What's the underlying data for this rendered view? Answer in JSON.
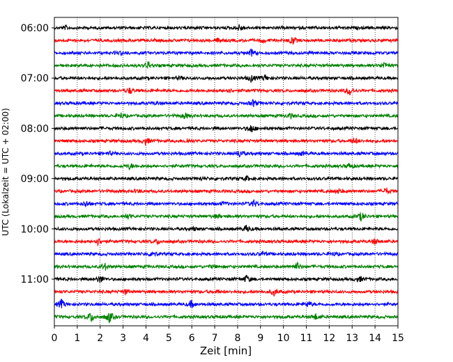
{
  "chart_data": {
    "type": "line",
    "title": "",
    "xlabel": "Zeit  [min]",
    "ylabel": "UTC (Lokalzeit = UTC + 02:00)",
    "xlim": [
      0,
      15
    ],
    "x_ticks": [
      0,
      1,
      2,
      3,
      4,
      5,
      6,
      7,
      8,
      9,
      10,
      11,
      12,
      13,
      14,
      15
    ],
    "x_tick_labels": [
      "0",
      "1",
      "2",
      "3",
      "4",
      "5",
      "6",
      "7",
      "8",
      "9",
      "10",
      "11",
      "12",
      "13",
      "14",
      "15"
    ],
    "y_ticks": [
      "06:00",
      "07:00",
      "08:00",
      "09:00",
      "10:00",
      "11:00"
    ],
    "grid": "vertical dotted at each minute",
    "trace_minutes": 15,
    "color_cycle": [
      "#000000",
      "#ff0000",
      "#0000ff",
      "#008000"
    ],
    "series": [
      {
        "start": "06:00",
        "color": "#000000",
        "events": [
          [
            0.5,
            2
          ],
          [
            8.1,
            5
          ]
        ]
      },
      {
        "start": "06:15",
        "color": "#ff0000",
        "events": [
          [
            7.2,
            3
          ],
          [
            9.1,
            2
          ],
          [
            10.4,
            6
          ]
        ]
      },
      {
        "start": "06:30",
        "color": "#0000ff",
        "events": [
          [
            8.6,
            5
          ],
          [
            2.9,
            2
          ]
        ]
      },
      {
        "start": "06:45",
        "color": "#008000",
        "events": [
          [
            4.1,
            5
          ],
          [
            14.4,
            5
          ]
        ]
      },
      {
        "start": "07:00",
        "color": "#000000",
        "events": [
          [
            8.6,
            5
          ],
          [
            9.2,
            4
          ],
          [
            5.5,
            2
          ]
        ]
      },
      {
        "start": "07:15",
        "color": "#ff0000",
        "events": [
          [
            3.3,
            4
          ],
          [
            7.6,
            3
          ],
          [
            12.9,
            6
          ]
        ]
      },
      {
        "start": "07:30",
        "color": "#0000ff",
        "events": [
          [
            8.7,
            5
          ],
          [
            4.5,
            2
          ]
        ]
      },
      {
        "start": "07:45",
        "color": "#008000",
        "events": [
          [
            2.9,
            4
          ],
          [
            5.7,
            4
          ],
          [
            10.3,
            3
          ]
        ]
      },
      {
        "start": "08:00",
        "color": "#000000",
        "events": [
          [
            8.6,
            6
          ]
        ]
      },
      {
        "start": "08:15",
        "color": "#ff0000",
        "events": [
          [
            4.0,
            5
          ],
          [
            5.8,
            3
          ],
          [
            13.1,
            4
          ]
        ]
      },
      {
        "start": "08:30",
        "color": "#0000ff",
        "events": [
          [
            8.1,
            5
          ],
          [
            2.4,
            2
          ],
          [
            10.8,
            2
          ]
        ]
      },
      {
        "start": "08:45",
        "color": "#008000",
        "events": [
          [
            3.3,
            4
          ],
          [
            12.9,
            4
          ]
        ]
      },
      {
        "start": "09:00",
        "color": "#000000",
        "events": [
          [
            8.4,
            3
          ],
          [
            6.4,
            2
          ]
        ]
      },
      {
        "start": "09:15",
        "color": "#ff0000",
        "events": [
          [
            14.5,
            4
          ],
          [
            3.6,
            2
          ],
          [
            12.4,
            3
          ]
        ]
      },
      {
        "start": "09:30",
        "color": "#0000ff",
        "events": [
          [
            1.4,
            4
          ],
          [
            8.7,
            5
          ],
          [
            7.4,
            2
          ]
        ]
      },
      {
        "start": "09:45",
        "color": "#008000",
        "events": [
          [
            13.4,
            6
          ],
          [
            3.2,
            3
          ],
          [
            7.1,
            2
          ]
        ]
      },
      {
        "start": "10:00",
        "color": "#000000",
        "events": [
          [
            8.4,
            5
          ],
          [
            6.1,
            2
          ]
        ]
      },
      {
        "start": "10:15",
        "color": "#ff0000",
        "events": [
          [
            1.9,
            5
          ],
          [
            4.5,
            3
          ],
          [
            14.0,
            4
          ]
        ]
      },
      {
        "start": "10:30",
        "color": "#0000ff",
        "events": [
          [
            4.3,
            5
          ],
          [
            9.1,
            3
          ],
          [
            12.2,
            2
          ]
        ]
      },
      {
        "start": "10:45",
        "color": "#008000",
        "events": [
          [
            2.2,
            5
          ],
          [
            10.6,
            5
          ],
          [
            6.9,
            2
          ]
        ]
      },
      {
        "start": "11:00",
        "color": "#000000",
        "events": [
          [
            2.0,
            5
          ],
          [
            8.4,
            5
          ],
          [
            13.3,
            4
          ]
        ]
      },
      {
        "start": "11:15",
        "color": "#ff0000",
        "events": [
          [
            9.6,
            5
          ],
          [
            3.1,
            3
          ],
          [
            7.1,
            2
          ]
        ]
      },
      {
        "start": "11:30",
        "color": "#0000ff",
        "events": [
          [
            0.3,
            6
          ],
          [
            6.0,
            5
          ],
          [
            11.1,
            4
          ]
        ]
      },
      {
        "start": "11:45",
        "color": "#008000",
        "events": [
          [
            1.6,
            7
          ],
          [
            2.4,
            8
          ],
          [
            11.4,
            4
          ]
        ]
      }
    ]
  }
}
